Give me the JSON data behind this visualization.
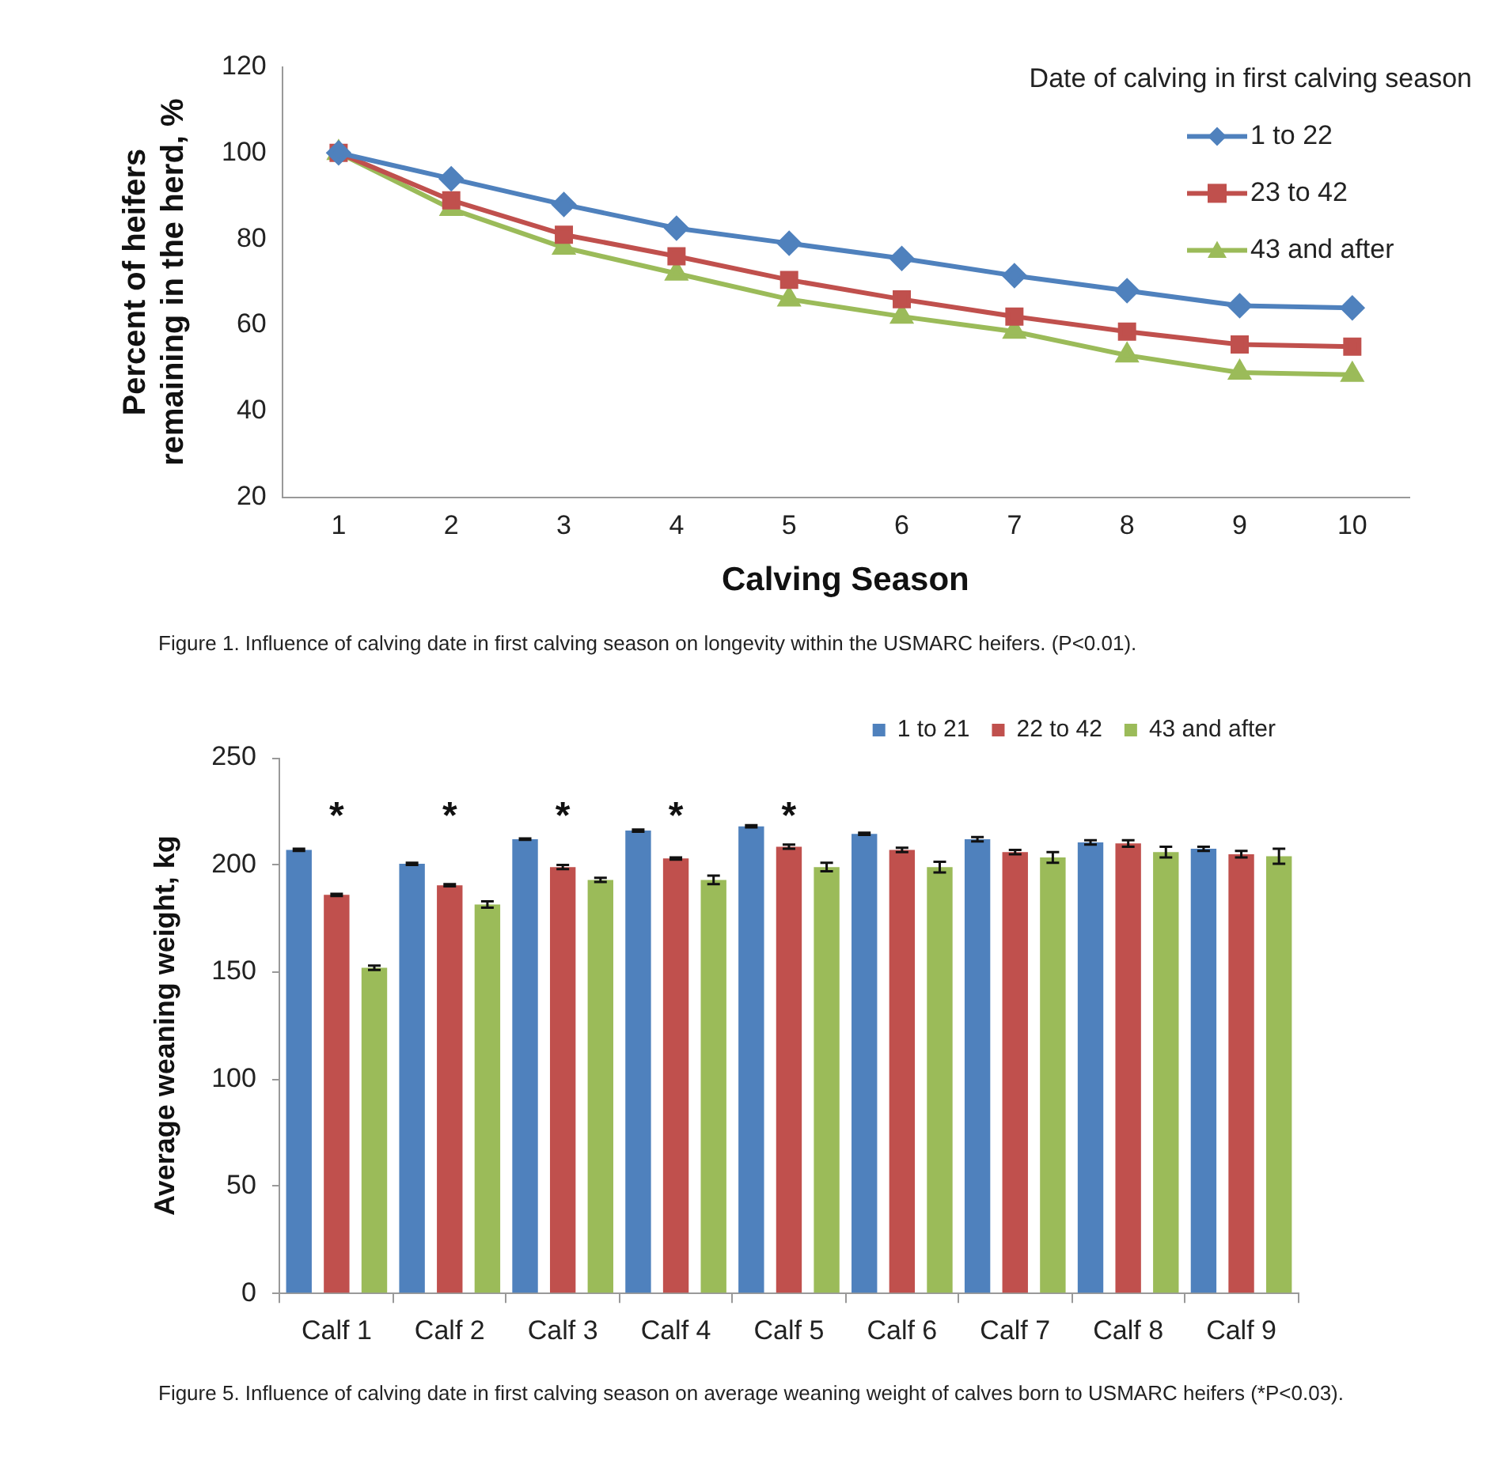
{
  "chart_data": [
    {
      "type": "line",
      "xlabel": "Calving Season",
      "ylabel": "Percent of heifers remaining in the herd, %",
      "legend_title": "Date of calving in first calving season",
      "legend": "top right",
      "grid": false,
      "line_style": "solid",
      "categories": [
        "1",
        "2",
        "3",
        "4",
        "5",
        "6",
        "7",
        "8",
        "9",
        "10"
      ],
      "ylim": [
        20,
        120
      ],
      "yticks": [
        20,
        40,
        60,
        80,
        100,
        120
      ],
      "series": [
        {
          "name": "1 to 22",
          "color": "#4f81bd",
          "marker": "diamond",
          "values": [
            100,
            94,
            88,
            82.5,
            79,
            75.5,
            71.5,
            68,
            64.5,
            64
          ]
        },
        {
          "name": "23 to 42",
          "color": "#c0504d",
          "marker": "square",
          "values": [
            100,
            89,
            81,
            76,
            70.5,
            66,
            62,
            58.5,
            55.5,
            55
          ]
        },
        {
          "name": "43 and after",
          "color": "#9bbb59",
          "marker": "triangle",
          "values": [
            100,
            87,
            78,
            72,
            66,
            62,
            58.5,
            53,
            49,
            48.5
          ]
        }
      ],
      "annotations": [
        "Figure 1. Influence of calving date in first calving season on longevity within the USMARC heifers. (P<0.01)."
      ]
    },
    {
      "type": "bar",
      "ylabel": "Average weaning weight, kg",
      "legend": "top right",
      "grid": false,
      "categories": [
        "Calf 1",
        "Calf 2",
        "Calf 3",
        "Calf 4",
        "Calf 5",
        "Calf 6",
        "Calf 7",
        "Calf 8",
        "Calf 9"
      ],
      "ylim": [
        0,
        250
      ],
      "yticks": [
        0,
        50,
        100,
        150,
        200,
        250
      ],
      "series": [
        {
          "name": "1 to 21",
          "color": "#4f81bd",
          "values": [
            207,
            200.5,
            212,
            216,
            218,
            214.5,
            212,
            210.5,
            207.5
          ],
          "errors": [
            0.5,
            0.5,
            0.3,
            0.5,
            0.5,
            0.5,
            1,
            1,
            1
          ]
        },
        {
          "name": "22 to 42",
          "color": "#c0504d",
          "values": [
            186,
            190.5,
            199,
            203,
            208.5,
            207,
            206,
            210,
            205
          ],
          "errors": [
            0.5,
            0.5,
            1,
            0.5,
            1,
            1,
            1,
            1.5,
            1.5
          ]
        },
        {
          "name": "43 and after",
          "color": "#9bbb59",
          "values": [
            152,
            181.5,
            193,
            193,
            199,
            199,
            203.5,
            206,
            204
          ],
          "errors": [
            1,
            1.5,
            1,
            2,
            2,
            2.5,
            2.5,
            2.5,
            3.5
          ]
        }
      ],
      "annotations": [
        "*",
        "*",
        "*",
        "*",
        "*",
        "Figure 5. Influence of calving date in first calving season on average weaning weight of calves born to USMARC heifers (*P<0.03)."
      ]
    }
  ]
}
